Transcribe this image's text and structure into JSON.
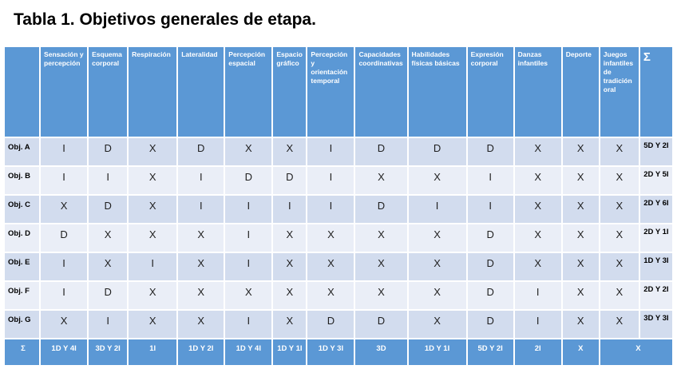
{
  "title": "Tabla 1. Objetivos generales de etapa.",
  "table": {
    "corner": "",
    "sigma": "Σ",
    "columns": [
      "Sensación y percepción",
      "Esquema corporal",
      "Respiración",
      "Lateralidad",
      "Percepción espacial",
      "Espacio gráfico",
      "Percepción y orientación temporal",
      "Capacidades coordinativas",
      "Habilidades físicas básicas",
      "Expresión corporal",
      "Danzas infantiles",
      "Deporte",
      "Juegos infantiles de tradición oral"
    ],
    "rows": [
      {
        "label": "Obj. A",
        "values": [
          "I",
          "D",
          "X",
          "D",
          "X",
          "X",
          "I",
          "D",
          "D",
          "D",
          "X",
          "X",
          "X"
        ],
        "total": "5D Y 2I"
      },
      {
        "label": "Obj. B",
        "values": [
          "I",
          "I",
          "X",
          "I",
          "D",
          "D",
          "I",
          "X",
          "X",
          "I",
          "X",
          "X",
          "X"
        ],
        "total": "2D Y 5I"
      },
      {
        "label": "Obj. C",
        "values": [
          "X",
          "D",
          "X",
          "I",
          "I",
          "I",
          "I",
          "D",
          "I",
          "I",
          "X",
          "X",
          "X"
        ],
        "total": "2D Y 6I"
      },
      {
        "label": "Obj. D",
        "values": [
          "D",
          "X",
          "X",
          "X",
          "I",
          "X",
          "X",
          "X",
          "X",
          "D",
          "X",
          "X",
          "X"
        ],
        "total": "2D Y 1I"
      },
      {
        "label": "Obj. E",
        "values": [
          "I",
          "X",
          "I",
          "X",
          "I",
          "X",
          "X",
          "X",
          "X",
          "D",
          "X",
          "X",
          "X"
        ],
        "total": "1D Y 3I"
      },
      {
        "label": "Obj. F",
        "values": [
          "I",
          "D",
          "X",
          "X",
          "X",
          "X",
          "X",
          "X",
          "X",
          "D",
          "I",
          "X",
          "X"
        ],
        "total": "2D Y 2I"
      },
      {
        "label": "Obj. G",
        "values": [
          "X",
          "I",
          "X",
          "X",
          "I",
          "X",
          "D",
          "D",
          "X",
          "D",
          "I",
          "X",
          "X"
        ],
        "total": "3D Y 3I"
      }
    ],
    "summary": {
      "label": "Σ",
      "values": [
        "1D Y 4I",
        "3D Y 2I",
        "1I",
        "1D Y 2I",
        "1D Y 4I",
        "1D Y 1I",
        "1D Y 3I",
        "3D",
        "1D Y 1I",
        "5D Y 2I",
        "2I",
        "X"
      ],
      "merged_last": "X"
    }
  },
  "colors": {
    "header_blue": "#5b98d5",
    "band_dark": "#d2dcee",
    "band_light": "#eaeef7",
    "title_color": "#000000"
  }
}
